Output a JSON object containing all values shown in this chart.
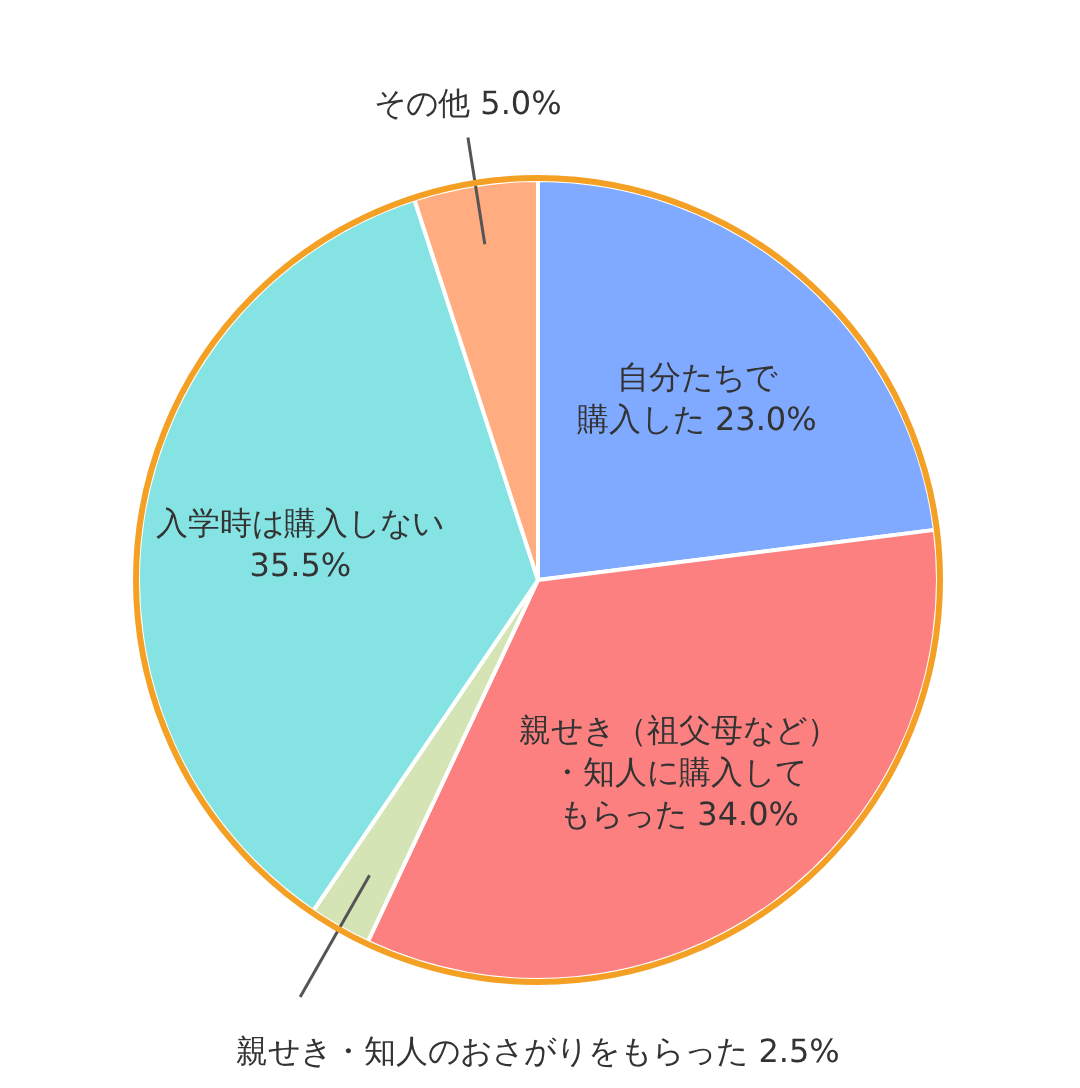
{
  "chart_data": {
    "type": "pie",
    "categories": [
      "自分たちで購入した",
      "親せき（祖父母など）・知人に購入してもらった",
      "親せき・知人のおさがりをもらった",
      "入学時は購入しない",
      "その他"
    ],
    "values": [
      23.0,
      34.0,
      2.5,
      35.5,
      5.0
    ],
    "value_labels": [
      "23.0%",
      "34.0%",
      "2.5%",
      "35.5%",
      "5.0%"
    ],
    "colors": [
      "#80aaff",
      "#fc8080",
      "#d4e4b4",
      "#86e3e3",
      "#ffad80"
    ]
  }
}
